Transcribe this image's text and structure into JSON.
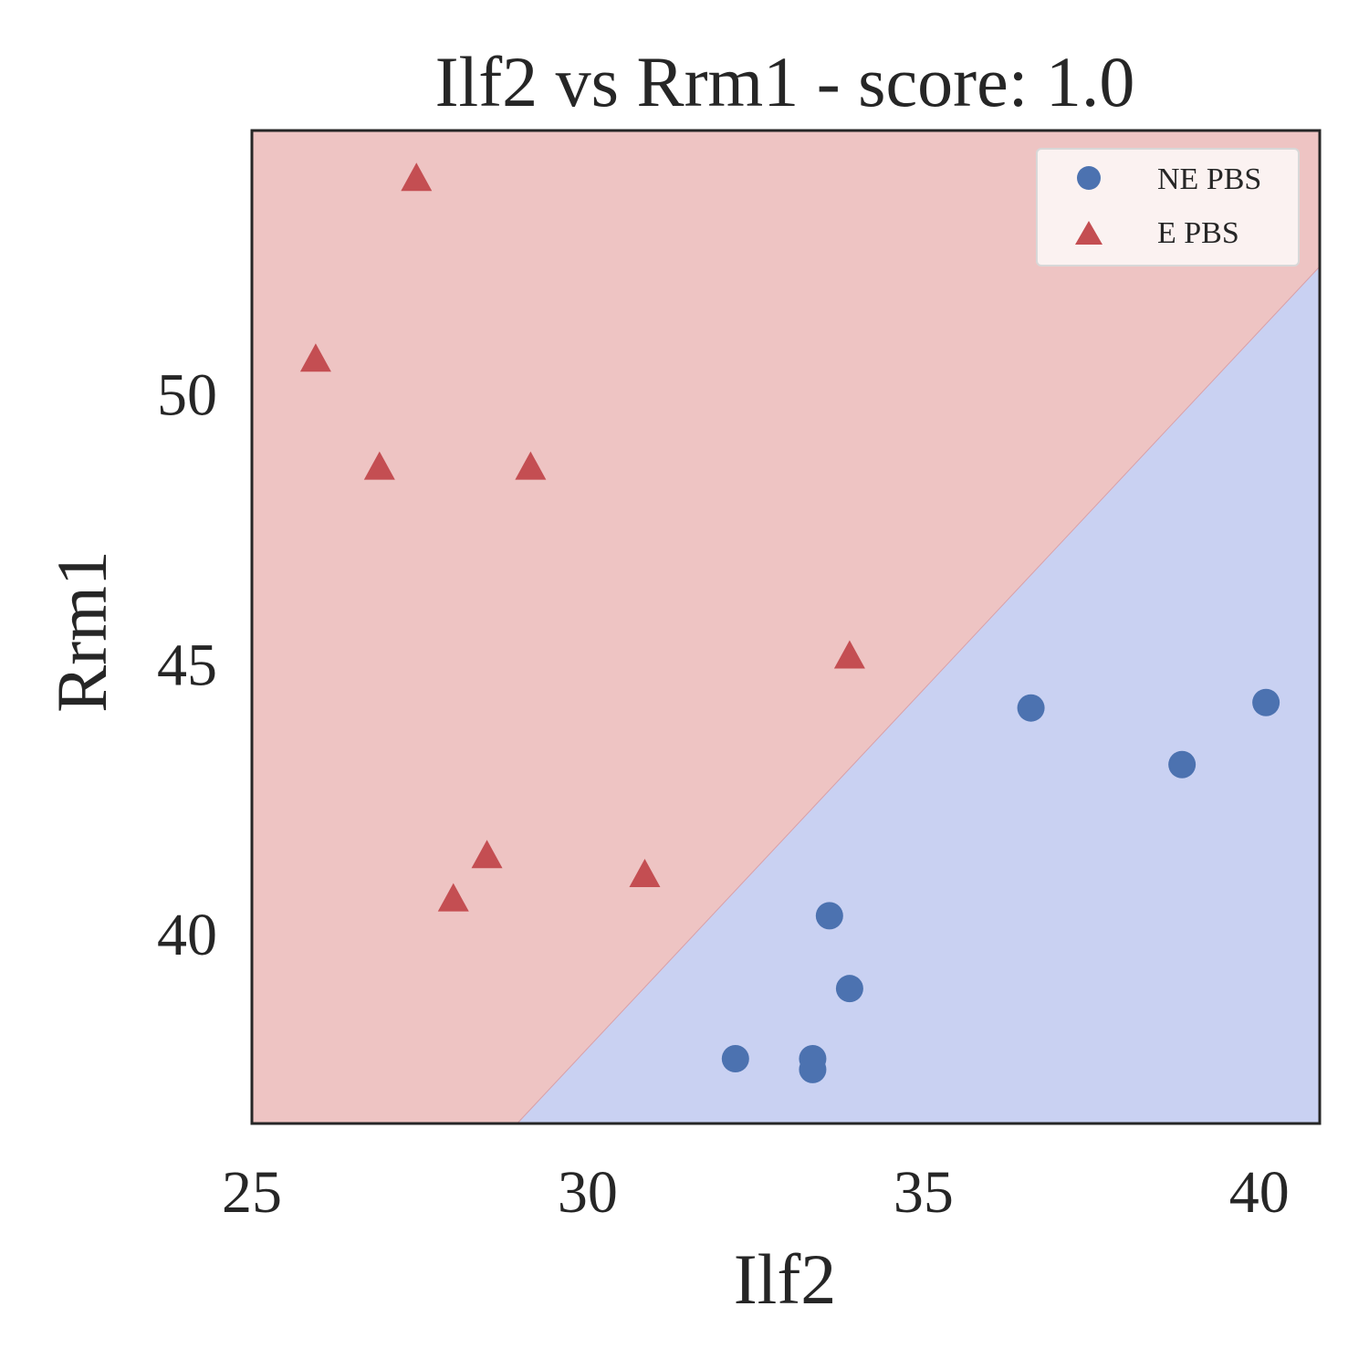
{
  "chart_data": {
    "type": "scatter",
    "title": "Ilf2 vs Rrm1 - score: 1.0",
    "xlabel": "Ilf2",
    "ylabel": "Rrm1",
    "xlim": [
      25.0,
      40.9
    ],
    "ylim": [
      36.5,
      54.9
    ],
    "xticks": [
      25,
      30,
      35,
      40
    ],
    "yticks": [
      40,
      45,
      50
    ],
    "grid": false,
    "legend_position": "top-right",
    "decision_boundary": {
      "points": [
        [
          28.95,
          36.5
        ],
        [
          40.9,
          52.38
        ]
      ],
      "region_above_color": "#eec4c3",
      "region_below_color": "#c9d1f2"
    },
    "series": [
      {
        "name": "NE PBS",
        "marker": "circle",
        "color": "#4c72b0",
        "points": [
          [
            32.2,
            37.7
          ],
          [
            33.35,
            37.7
          ],
          [
            33.35,
            37.5
          ],
          [
            33.6,
            40.35
          ],
          [
            33.9,
            39.0
          ],
          [
            36.6,
            44.2
          ],
          [
            38.85,
            43.15
          ],
          [
            40.1,
            44.3
          ]
        ]
      },
      {
        "name": "E PBS",
        "marker": "triangle",
        "color": "#c44e52",
        "points": [
          [
            27.45,
            54.0
          ],
          [
            25.95,
            50.65
          ],
          [
            26.9,
            48.65
          ],
          [
            29.15,
            48.65
          ],
          [
            33.9,
            45.15
          ],
          [
            28.5,
            41.45
          ],
          [
            28.0,
            40.65
          ],
          [
            30.85,
            41.1
          ]
        ]
      }
    ]
  }
}
